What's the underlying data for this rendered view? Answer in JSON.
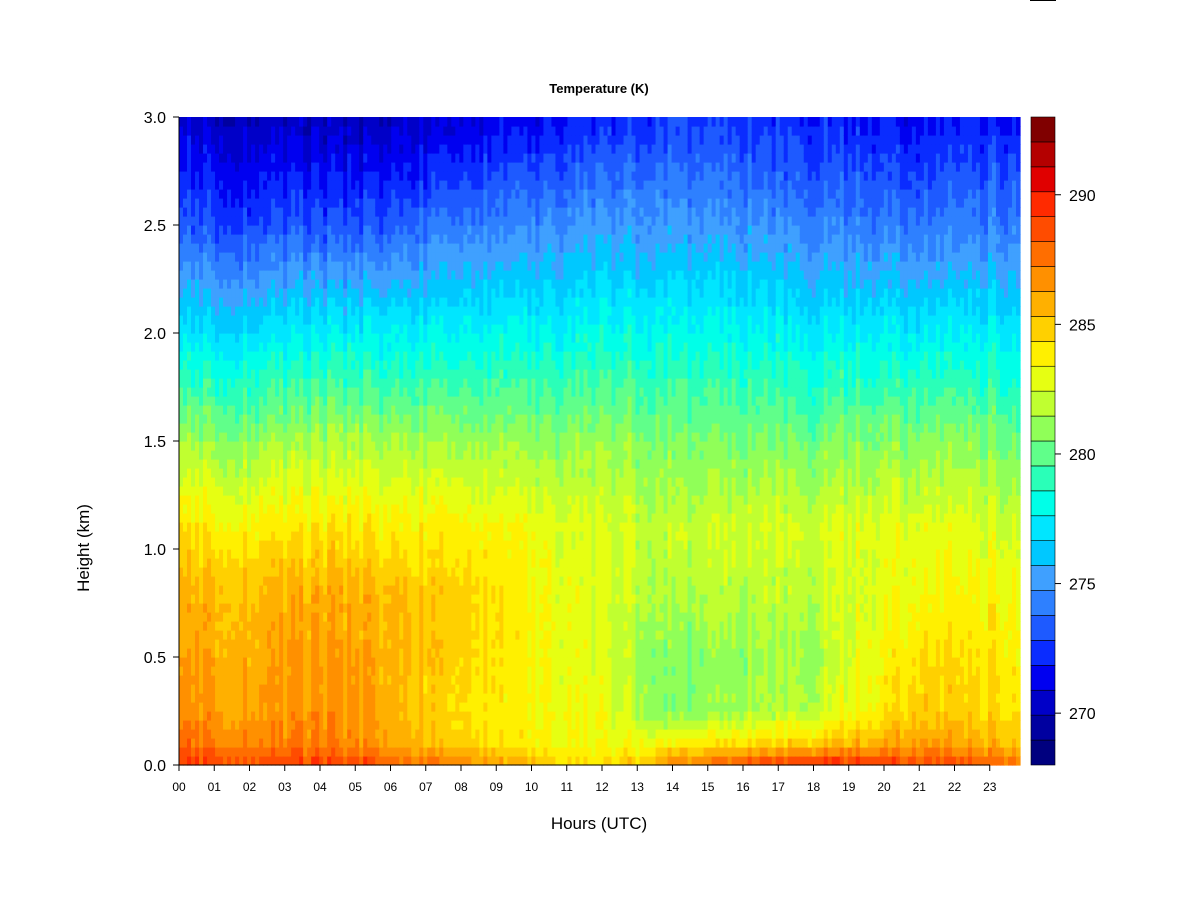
{
  "chart_data": {
    "type": "heatmap",
    "title": "Temperature (K)",
    "xlabel": "Hours (UTC)",
    "ylabel": "Height (km)",
    "xlim": [
      0,
      23.85
    ],
    "ylim": [
      0,
      3.0
    ],
    "x_ticks": [
      "00",
      "01",
      "02",
      "03",
      "04",
      "05",
      "06",
      "07",
      "08",
      "09",
      "10",
      "11",
      "12",
      "13",
      "14",
      "15",
      "16",
      "17",
      "18",
      "19",
      "20",
      "21",
      "22",
      "23"
    ],
    "y_ticks": [
      "0.0",
      "0.5",
      "1.0",
      "1.5",
      "2.0",
      "2.5",
      "3.0"
    ],
    "colorbar": {
      "min": 268,
      "max": 293,
      "levels": 25,
      "ticks": [
        270,
        275,
        280,
        285,
        290
      ],
      "colors": [
        "#00007F",
        "#0000A0",
        "#0000C8",
        "#0000F0",
        "#0A2CFF",
        "#1E5AFF",
        "#2E80FF",
        "#3FA0FF",
        "#00C8FF",
        "#00E6FF",
        "#00FFE8",
        "#2AFFB8",
        "#60FF8A",
        "#90FF58",
        "#C0FF30",
        "#E6FF12",
        "#FFF000",
        "#FFD000",
        "#FFB000",
        "#FF9000",
        "#FF6E00",
        "#FF4C00",
        "#FF2A00",
        "#E00000",
        "#B40000",
        "#800000"
      ]
    },
    "field_summary": {
      "description_points_height_km": [
        0.0,
        0.1,
        0.25,
        0.5,
        0.8,
        1.1,
        1.5,
        2.0,
        2.5,
        3.0
      ],
      "profiles": [
        {
          "hour": 0,
          "temps": [
            289,
            287.5,
            286.5,
            286.0,
            285.5,
            284.0,
            281.0,
            277.0,
            273.0,
            270.5
          ]
        },
        {
          "hour": 5,
          "temps": [
            289,
            287.0,
            286.5,
            286.2,
            285.8,
            284.0,
            281.5,
            277.5,
            273.0,
            270.0
          ]
        },
        {
          "hour": 8,
          "temps": [
            287,
            284.5,
            284.0,
            284.5,
            284.5,
            283.5,
            281.0,
            277.5,
            274.0,
            270.5
          ]
        },
        {
          "hour": 12,
          "temps": [
            284,
            283.0,
            283.0,
            282.5,
            282.5,
            282.5,
            281.0,
            278.0,
            275.0,
            272.0
          ]
        },
        {
          "hour": 14,
          "temps": [
            287,
            283.5,
            280.5,
            280.5,
            281.5,
            282.0,
            280.5,
            278.0,
            275.0,
            272.5
          ]
        },
        {
          "hour": 18,
          "temps": [
            290,
            285.0,
            282.0,
            281.5,
            282.0,
            282.5,
            280.5,
            277.5,
            274.5,
            272.0
          ]
        },
        {
          "hour": 21,
          "temps": [
            289,
            286.5,
            285.0,
            284.5,
            283.5,
            283.0,
            281.0,
            277.5,
            274.0,
            271.5
          ]
        },
        {
          "hour": 23.85,
          "temps": [
            288,
            285.5,
            284.5,
            284.0,
            283.5,
            282.5,
            280.5,
            277.5,
            274.5,
            272.0
          ]
        }
      ]
    }
  }
}
